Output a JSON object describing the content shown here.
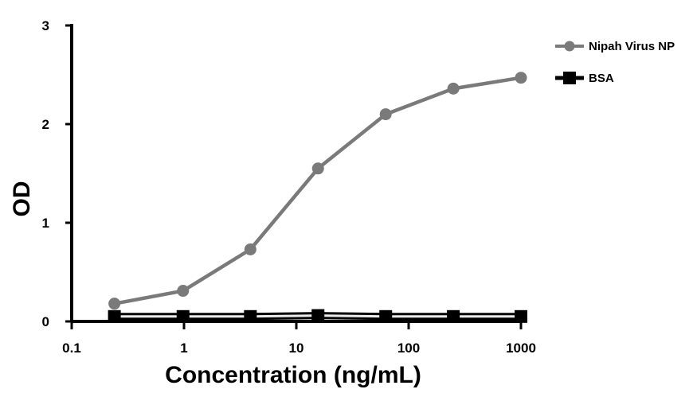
{
  "chart_data": {
    "type": "line",
    "title": "",
    "xlabel": "Concentration (ng/mL)",
    "ylabel": "OD",
    "x_scale": "log",
    "xlim": [
      0.1,
      1000
    ],
    "ylim": [
      0,
      3
    ],
    "x_ticks": [
      0.1,
      1,
      10,
      100,
      1000
    ],
    "x_tick_labels": [
      "0.1",
      "1",
      "10",
      "100",
      "1000"
    ],
    "y_ticks": [
      0,
      1,
      2,
      3
    ],
    "y_tick_labels": [
      "0",
      "1",
      "2",
      "3"
    ],
    "grid": false,
    "legend_position": "top-right",
    "x": [
      0.24,
      0.98,
      3.9,
      15.6,
      62.5,
      250,
      1000
    ],
    "series": [
      {
        "name": "Nipah Virus NP",
        "color": "#7a7a7a",
        "marker": "circle",
        "values": [
          0.18,
          0.31,
          0.73,
          1.55,
          2.1,
          2.36,
          2.47
        ]
      },
      {
        "name": "BSA",
        "color": "#000000",
        "marker": "square",
        "values": [
          0.05,
          0.05,
          0.05,
          0.06,
          0.05,
          0.05,
          0.05
        ]
      }
    ]
  }
}
